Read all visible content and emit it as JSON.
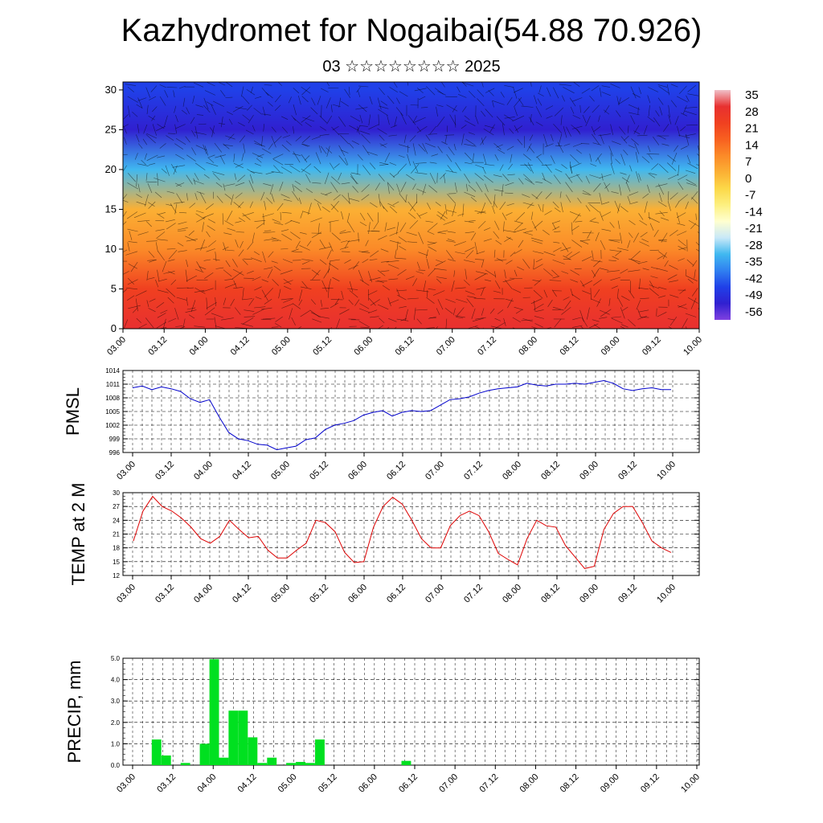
{
  "header": {
    "title": "Kazhydromet for Nogaibai(54.88 70.926)",
    "subtitle": "03 ☆☆☆☆☆☆☆☆ 2025"
  },
  "chart_data": [
    {
      "type": "heatmap",
      "title": "",
      "ylabel": "",
      "ylim": [
        0,
        31
      ],
      "yticks": [
        0,
        5,
        10,
        15,
        20,
        25,
        30
      ],
      "xticks": [
        "03.00",
        "03.12",
        "04.00",
        "04.12",
        "05.00",
        "05.12",
        "06.00",
        "06.12",
        "07.00",
        "07.12",
        "08.00",
        "08.12",
        "09.00",
        "09.12",
        "10.00"
      ],
      "colorbar": {
        "labels": [
          "35",
          "28",
          "21",
          "14",
          "7",
          "0",
          "-7",
          "-14",
          "-21",
          "-28",
          "-35",
          "-42",
          "-49",
          "-56"
        ],
        "stops": [
          "#f0c0c8",
          "#e83030",
          "#f04020",
          "#f86020",
          "#fb8a28",
          "#fbb034",
          "#fcd848",
          "#fdf080",
          "#ffffd0",
          "#c8e8f8",
          "#40b8f0",
          "#3080f0",
          "#2040e8",
          "#3020d0",
          "#8040e0"
        ]
      },
      "profile_levels": [
        0,
        5,
        10,
        15,
        20,
        25,
        30,
        31
      ],
      "profile_values": [
        28,
        22,
        12,
        0,
        -35,
        -56,
        -52,
        -50
      ]
    },
    {
      "type": "line",
      "ylabel": "PMSL",
      "ylim": [
        996,
        1014
      ],
      "yticks": [
        996,
        999,
        1002,
        1005,
        1008,
        1011,
        1014
      ],
      "xticks": [
        "03.00",
        "03.12",
        "04.00",
        "04.12",
        "05.00",
        "05.12",
        "06.00",
        "06.12",
        "07.00",
        "07.12",
        "08.00",
        "08.12",
        "09.00",
        "09.12",
        "10.00"
      ],
      "color": "#0000cc",
      "values": [
        1010.2,
        1010.6,
        1009.8,
        1010.4,
        1010.0,
        1009.4,
        1007.8,
        1007.0,
        1007.6,
        1003.8,
        1000.4,
        999.0,
        998.6,
        997.8,
        997.6,
        996.6,
        997.0,
        997.4,
        998.8,
        999.2,
        1001.0,
        1002.0,
        1002.4,
        1003.0,
        1004.2,
        1004.8,
        1005.2,
        1004.0,
        1004.8,
        1005.2,
        1005.0,
        1005.2,
        1006.4,
        1007.6,
        1007.8,
        1008.2,
        1009.0,
        1009.6,
        1010.0,
        1010.2,
        1010.4,
        1011.2,
        1010.8,
        1010.6,
        1011.0,
        1011.0,
        1011.2,
        1011.0,
        1011.4,
        1011.8,
        1011.2,
        1010.0,
        1009.6,
        1010.0,
        1010.2,
        1009.8,
        1009.8
      ]
    },
    {
      "type": "line",
      "ylabel": "TEMP at 2 M",
      "ylim": [
        12,
        30
      ],
      "yticks": [
        12,
        15,
        18,
        21,
        24,
        27,
        30
      ],
      "xticks": [
        "03.00",
        "03.12",
        "04.00",
        "04.12",
        "05.00",
        "05.12",
        "06.00",
        "06.12",
        "07.00",
        "07.12",
        "08.00",
        "08.12",
        "09.00",
        "09.12",
        "10.00"
      ],
      "color": "#dd0000",
      "values": [
        19.5,
        26.0,
        29.2,
        27.0,
        26.0,
        24.5,
        22.5,
        20.0,
        19.0,
        20.5,
        24.0,
        22.0,
        20.2,
        20.5,
        17.5,
        15.8,
        15.8,
        17.5,
        19.0,
        24.0,
        23.5,
        21.5,
        17.0,
        14.8,
        15.0,
        22.5,
        27.0,
        29.0,
        27.5,
        24.0,
        20.0,
        18.0,
        18.0,
        22.8,
        25.0,
        26.0,
        25.0,
        21.5,
        16.8,
        15.5,
        14.3,
        20.0,
        24.0,
        22.8,
        22.5,
        18.5,
        16.0,
        13.5,
        14.0,
        22.0,
        25.5,
        27.0,
        27.0,
        23.5,
        19.5,
        18.0,
        17.0
      ]
    },
    {
      "type": "bar",
      "ylabel": "PRECIP, mm",
      "ylim": [
        0,
        5
      ],
      "yticks": [
        "0.0",
        "1.0",
        "2.0",
        "3.0",
        "4.0",
        "5.0"
      ],
      "xticks": [
        "03.00",
        "03.12",
        "04.00",
        "04.12",
        "05.00",
        "05.12",
        "06.00",
        "06.12",
        "07.00",
        "07.12",
        "08.00",
        "08.12",
        "09.00",
        "09.12",
        "10.00"
      ],
      "color": "#00e020",
      "values": [
        0,
        0,
        0,
        1.2,
        0.45,
        0,
        0.1,
        0,
        1.0,
        4.95,
        0.35,
        2.55,
        2.55,
        1.3,
        0.1,
        0.35,
        0,
        0.1,
        0.15,
        0.1,
        1.2,
        0,
        0,
        0,
        0,
        0,
        0,
        0,
        0,
        0.2,
        0,
        0,
        0,
        0,
        0,
        0,
        0,
        0,
        0,
        0,
        0,
        0,
        0,
        0,
        0,
        0,
        0,
        0,
        0,
        0,
        0,
        0,
        0,
        0,
        0,
        0,
        0,
        0,
        0,
        0
      ]
    }
  ]
}
